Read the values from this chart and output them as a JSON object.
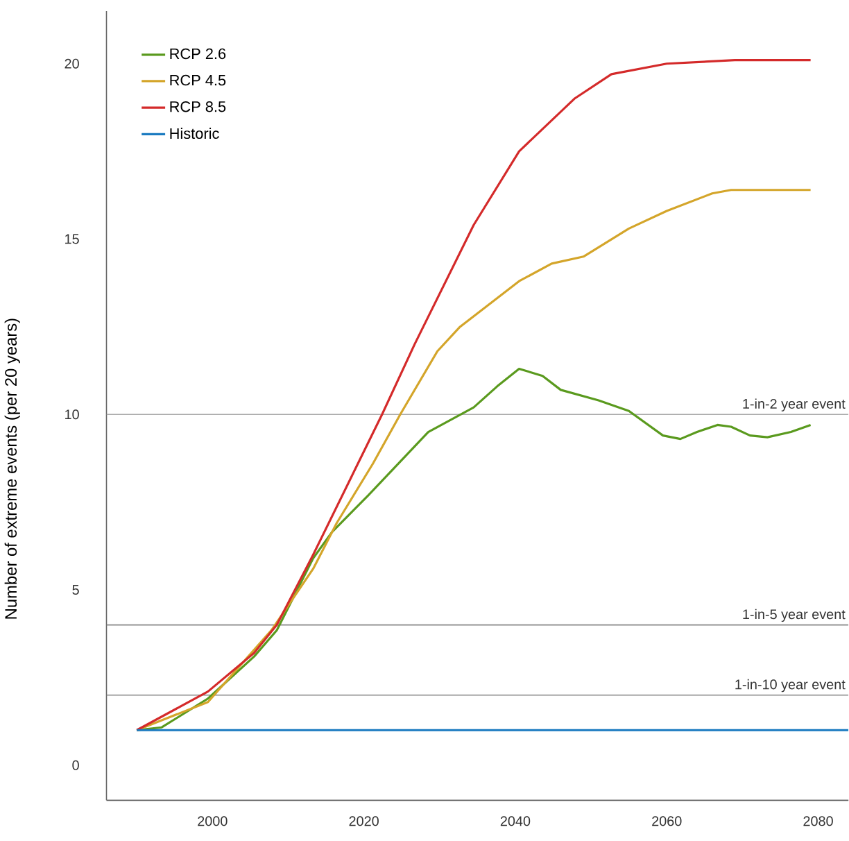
{
  "chart_data": {
    "type": "line",
    "ylabel": "Number of extreme events (per 20 years)",
    "xlim": [
      1986,
      2084
    ],
    "ylim": [
      -1,
      21.5
    ],
    "xticks": [
      2000,
      2020,
      2040,
      2060,
      2080
    ],
    "yticks": [
      0,
      5,
      10,
      15,
      20
    ],
    "legend": "top left",
    "grid": false,
    "marker": "none",
    "line_style": "solid",
    "series": [
      {
        "name": "RCP 2.6",
        "color": "#5a9a1e",
        "x": [
          1990,
          1993.3,
          1999.4,
          2005.5,
          2008.5,
          2013.3,
          2015.8,
          2020.6,
          2028.5,
          2034.5,
          2037.6,
          2040.5,
          2043.6,
          2046,
          2051,
          2055,
          2059.5,
          2061.8,
          2064,
          2066.7,
          2068.5,
          2071,
          2073.3,
          2076.4,
          2079
        ],
        "values": [
          1,
          1.08,
          1.9,
          3.1,
          3.85,
          5.9,
          6.65,
          7.7,
          9.5,
          10.2,
          10.8,
          11.3,
          11.1,
          10.7,
          10.4,
          10.1,
          9.4,
          9.3,
          9.5,
          9.7,
          9.65,
          9.4,
          9.35,
          9.5,
          9.7
        ]
      },
      {
        "name": "RCP 4.5",
        "color": "#d4a52a",
        "x": [
          1990,
          1999.4,
          2007.8,
          2013.3,
          2016.4,
          2021.2,
          2024.8,
          2029.7,
          2032.7,
          2040.5,
          2044.8,
          2049,
          2052,
          2055,
          2060,
          2066,
          2068.5,
          2079
        ],
        "values": [
          1,
          1.8,
          3.85,
          5.6,
          6.9,
          8.6,
          10,
          11.8,
          12.5,
          13.8,
          14.3,
          14.5,
          14.9,
          15.3,
          15.8,
          16.3,
          16.4,
          16.4
        ]
      },
      {
        "name": "RCP 8.5",
        "color": "#d42a2a",
        "x": [
          1990,
          1999.4,
          2005.5,
          2008.5,
          2013.3,
          2022.4,
          2026.7,
          2034.5,
          2040.5,
          2047.8,
          2052.7,
          2060,
          2069,
          2079
        ],
        "values": [
          1,
          2.1,
          3.2,
          4,
          6,
          10,
          12,
          15.4,
          17.5,
          19,
          19.7,
          20,
          20.1,
          20.1
        ]
      },
      {
        "name": "Historic",
        "color": "#1a7ac0",
        "x": [
          1990,
          2084
        ],
        "values": [
          1,
          1
        ]
      }
    ],
    "ref_lines": [
      {
        "axis": "y",
        "value": 10,
        "label": "1-in-2 year event",
        "color": "#aaaaaa"
      },
      {
        "axis": "y",
        "value": 4,
        "label": "1-in-5 year event",
        "color": "#888888"
      },
      {
        "axis": "y",
        "value": 2,
        "label": "1-in-10 year event",
        "color": "#888888"
      }
    ]
  }
}
